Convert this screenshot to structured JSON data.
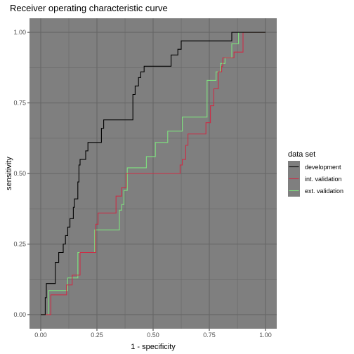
{
  "chart_data": {
    "type": "line",
    "title": "Receiver operating characteristic curve",
    "xlabel": "1 - specificity",
    "ylabel": "sensitivity",
    "xlim": [
      -0.05,
      1.05
    ],
    "ylim": [
      -0.05,
      1.05
    ],
    "x_ticks": [
      "0.00",
      "0.25",
      "0.50",
      "0.75",
      "1.00"
    ],
    "y_ticks": [
      "0.00",
      "0.25",
      "0.50",
      "0.75",
      "1.00"
    ],
    "grid": true,
    "panel_background": "#7f7f7f",
    "grid_color": "#666666",
    "legend": {
      "title": "data set",
      "position": "right"
    },
    "series": [
      {
        "name": "development",
        "color": "#000000",
        "points": [
          [
            0,
            0
          ],
          [
            0.02,
            0
          ],
          [
            0.02,
            0.06
          ],
          [
            0.025,
            0.06
          ],
          [
            0.025,
            0.11
          ],
          [
            0.065,
            0.11
          ],
          [
            0.065,
            0.185
          ],
          [
            0.08,
            0.185
          ],
          [
            0.08,
            0.22
          ],
          [
            0.1,
            0.22
          ],
          [
            0.1,
            0.25
          ],
          [
            0.11,
            0.25
          ],
          [
            0.11,
            0.28
          ],
          [
            0.12,
            0.28
          ],
          [
            0.12,
            0.31
          ],
          [
            0.13,
            0.31
          ],
          [
            0.13,
            0.34
          ],
          [
            0.145,
            0.34
          ],
          [
            0.145,
            0.38
          ],
          [
            0.15,
            0.38
          ],
          [
            0.15,
            0.41
          ],
          [
            0.165,
            0.41
          ],
          [
            0.165,
            0.47
          ],
          [
            0.17,
            0.47
          ],
          [
            0.17,
            0.53
          ],
          [
            0.175,
            0.53
          ],
          [
            0.175,
            0.55
          ],
          [
            0.2,
            0.55
          ],
          [
            0.2,
            0.58
          ],
          [
            0.21,
            0.58
          ],
          [
            0.21,
            0.61
          ],
          [
            0.27,
            0.61
          ],
          [
            0.27,
            0.66
          ],
          [
            0.28,
            0.66
          ],
          [
            0.28,
            0.69
          ],
          [
            0.41,
            0.69
          ],
          [
            0.41,
            0.78
          ],
          [
            0.42,
            0.78
          ],
          [
            0.42,
            0.81
          ],
          [
            0.435,
            0.81
          ],
          [
            0.435,
            0.84
          ],
          [
            0.445,
            0.84
          ],
          [
            0.445,
            0.86
          ],
          [
            0.46,
            0.86
          ],
          [
            0.46,
            0.88
          ],
          [
            0.58,
            0.88
          ],
          [
            0.58,
            0.92
          ],
          [
            0.61,
            0.92
          ],
          [
            0.61,
            0.94
          ],
          [
            0.625,
            0.94
          ],
          [
            0.625,
            0.97
          ],
          [
            0.85,
            0.97
          ],
          [
            0.85,
            1.0
          ],
          [
            1.0,
            1.0
          ]
        ]
      },
      {
        "name": "int. validation",
        "color": "#cc2d46",
        "points": [
          [
            0,
            0
          ],
          [
            0.045,
            0
          ],
          [
            0.045,
            0.07
          ],
          [
            0.115,
            0.07
          ],
          [
            0.115,
            0.105
          ],
          [
            0.14,
            0.105
          ],
          [
            0.14,
            0.14
          ],
          [
            0.175,
            0.14
          ],
          [
            0.175,
            0.22
          ],
          [
            0.245,
            0.22
          ],
          [
            0.245,
            0.32
          ],
          [
            0.255,
            0.32
          ],
          [
            0.255,
            0.36
          ],
          [
            0.335,
            0.36
          ],
          [
            0.335,
            0.42
          ],
          [
            0.36,
            0.42
          ],
          [
            0.36,
            0.45
          ],
          [
            0.38,
            0.45
          ],
          [
            0.38,
            0.5
          ],
          [
            0.62,
            0.5
          ],
          [
            0.62,
            0.53
          ],
          [
            0.63,
            0.53
          ],
          [
            0.63,
            0.55
          ],
          [
            0.645,
            0.55
          ],
          [
            0.645,
            0.6
          ],
          [
            0.655,
            0.6
          ],
          [
            0.655,
            0.64
          ],
          [
            0.735,
            0.64
          ],
          [
            0.735,
            0.68
          ],
          [
            0.755,
            0.68
          ],
          [
            0.755,
            0.74
          ],
          [
            0.77,
            0.74
          ],
          [
            0.77,
            0.8
          ],
          [
            0.79,
            0.8
          ],
          [
            0.79,
            0.86
          ],
          [
            0.805,
            0.86
          ],
          [
            0.805,
            0.88
          ],
          [
            0.81,
            0.88
          ],
          [
            0.81,
            0.91
          ],
          [
            0.86,
            0.91
          ],
          [
            0.86,
            0.93
          ],
          [
            0.9,
            0.93
          ],
          [
            0.9,
            1.0
          ],
          [
            1.0,
            1.0
          ]
        ]
      },
      {
        "name": "ext. validation",
        "color": "#7fe27f",
        "points": [
          [
            0,
            0
          ],
          [
            0.035,
            0
          ],
          [
            0.035,
            0.085
          ],
          [
            0.12,
            0.085
          ],
          [
            0.12,
            0.13
          ],
          [
            0.165,
            0.13
          ],
          [
            0.165,
            0.22
          ],
          [
            0.24,
            0.22
          ],
          [
            0.24,
            0.3
          ],
          [
            0.35,
            0.3
          ],
          [
            0.35,
            0.37
          ],
          [
            0.36,
            0.37
          ],
          [
            0.36,
            0.39
          ],
          [
            0.37,
            0.39
          ],
          [
            0.37,
            0.44
          ],
          [
            0.385,
            0.44
          ],
          [
            0.385,
            0.52
          ],
          [
            0.47,
            0.52
          ],
          [
            0.47,
            0.56
          ],
          [
            0.51,
            0.56
          ],
          [
            0.51,
            0.61
          ],
          [
            0.565,
            0.61
          ],
          [
            0.565,
            0.65
          ],
          [
            0.63,
            0.65
          ],
          [
            0.63,
            0.7
          ],
          [
            0.74,
            0.7
          ],
          [
            0.74,
            0.83
          ],
          [
            0.78,
            0.83
          ],
          [
            0.78,
            0.86
          ],
          [
            0.8,
            0.86
          ],
          [
            0.8,
            0.89
          ],
          [
            0.82,
            0.89
          ],
          [
            0.82,
            0.91
          ],
          [
            0.85,
            0.91
          ],
          [
            0.85,
            0.96
          ],
          [
            0.88,
            0.96
          ],
          [
            0.88,
            1.0
          ],
          [
            1.0,
            1.0
          ]
        ]
      }
    ]
  }
}
